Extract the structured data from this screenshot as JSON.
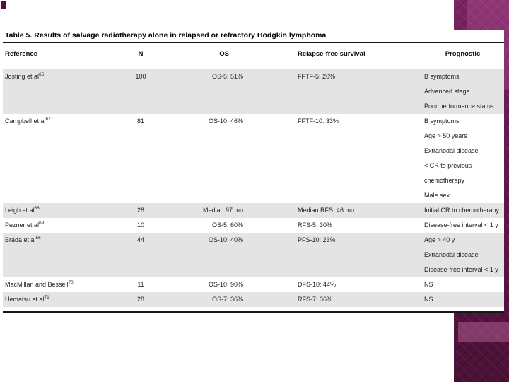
{
  "header": {
    "title": "Table 5. Results of salvage radiotherapy alone in relapsed or refractory Hodgkin lymphoma"
  },
  "table": {
    "columns": [
      {
        "key": "reference",
        "label": "Reference"
      },
      {
        "key": "n",
        "label": "N"
      },
      {
        "key": "os",
        "label": "OS"
      },
      {
        "key": "rfs",
        "label": "Relapse-free survival"
      },
      {
        "key": "prognostic",
        "label": "Prognostic"
      }
    ],
    "rows": [
      {
        "reference": "Josting et al",
        "reference_sup": "65",
        "n": "100",
        "os": "OS-5:  51%",
        "rfs": "FFTF-5: 26%",
        "prognostic": [
          "B symptoms",
          "Advanced stage",
          "Poor performance status"
        ],
        "shaded": true
      },
      {
        "reference": "Campbell et al",
        "reference_sup": "67",
        "n": "81",
        "os": "OS-10:  46%",
        "rfs": "FFTF-10: 33%",
        "prognostic": [
          "B symptoms",
          "Age > 50 years",
          "Extranodal disease",
          "< CR to previous",
          "chemotherapy",
          "Male sex"
        ],
        "shaded": false
      },
      {
        "reference": "Leigh et al",
        "reference_sup": "68",
        "n": "28",
        "os": "Median:97 mo",
        "rfs": "Median RFS: 46 mo",
        "prognostic": [
          "Initial CR to chemotherapy"
        ],
        "shaded": true
      },
      {
        "reference": "Pezner et al",
        "reference_sup": "69",
        "n": "10",
        "os": "OS-5:  60%",
        "rfs": "RFS-5: 30%",
        "prognostic": [
          "Disease-free interval < 1 y"
        ],
        "shaded": false
      },
      {
        "reference": "Brada et al",
        "reference_sup": "56",
        "n": "44",
        "os": "OS-10:  40%",
        "rfs": "PFS-10: 23%",
        "prognostic": [
          "Age > 40 y",
          "Extranodal disease",
          "Disease-free interval < 1 y"
        ],
        "shaded": true
      },
      {
        "reference": "MacMillan and Bessell",
        "reference_sup": "70",
        "n": "11",
        "os": "OS-10:  90%",
        "rfs": "DFS-10: 44%",
        "prognostic": [
          "NS"
        ],
        "shaded": false
      },
      {
        "reference": "Uematsu et al",
        "reference_sup": "71",
        "n": "28",
        "os": "OS-7:  36%",
        "rfs": "RFS-7: 36%",
        "prognostic": [
          "NS"
        ],
        "shaded": true
      }
    ]
  },
  "colors": {
    "accent_purple_dark": "#4a1136",
    "accent_purple_mid": "#63184c",
    "accent_purple_light": "#a34c86",
    "row_shade": "#e4e4e4",
    "rule": "#161616"
  }
}
